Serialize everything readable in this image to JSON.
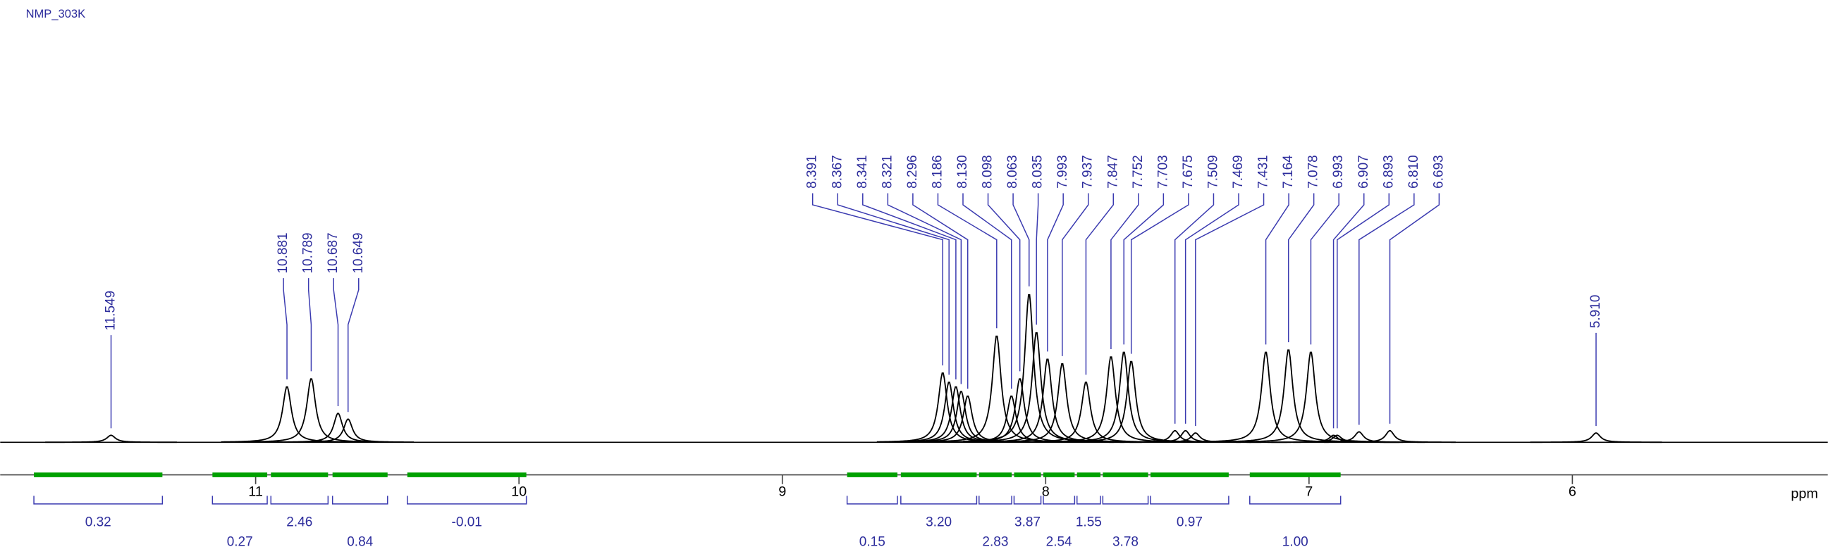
{
  "chart_data": {
    "type": "nmr",
    "title": "NMP_303K",
    "xlabel": "ppm",
    "xlim": [
      11.97,
      5.03
    ],
    "xticks": [
      11,
      10,
      9,
      8,
      7,
      6
    ],
    "ylim": [
      0,
      360
    ],
    "color": "#000000",
    "integral_color": "#00a000",
    "peaks": {
      "x": [
        11.549,
        10.881,
        10.789,
        10.687,
        10.649,
        8.391,
        8.367,
        8.341,
        8.321,
        8.296,
        8.186,
        {
          "value": 8.13,
          "label": "8.130"
        },
        8.098,
        8.063,
        8.035,
        7.993,
        7.937,
        7.847,
        7.752,
        7.703,
        7.675,
        7.509,
        7.469,
        7.431,
        7.164,
        7.078,
        6.993,
        6.907,
        6.893,
        {
          "value": 6.81,
          "label": "6.810"
        },
        6.693,
        {
          "value": 5.91,
          "label": "5.910"
        }
      ],
      "heights": [
        6,
        48,
        55,
        25,
        20,
        60,
        52,
        48,
        44,
        40,
        92,
        40,
        55,
        128,
        95,
        72,
        68,
        52,
        74,
        78,
        70,
        10,
        10,
        8,
        78,
        80,
        78,
        6,
        6,
        9,
        10,
        8
      ]
    },
    "integrals": {
      "from": [
        11.842,
        11.164,
        10.942,
        10.708,
        10.424,
        8.754,
        8.55,
        8.253,
        8.12,
        8.009,
        7.881,
        7.783,
        7.602,
        7.225
      ],
      "to": [
        11.354,
        10.956,
        10.725,
        10.499,
        9.972,
        8.563,
        8.262,
        8.129,
        8.018,
        7.89,
        7.792,
        7.611,
        7.305,
        6.88
      ],
      "values": [
        0.32,
        0.27,
        2.46,
        0.84,
        -0.01,
        0.15,
        {
          "value": 3.2,
          "label": "3.20"
        },
        2.83,
        3.87,
        2.54,
        1.55,
        3.78,
        0.97,
        {
          "value": 1,
          "label": "1.00"
        }
      ]
    }
  }
}
